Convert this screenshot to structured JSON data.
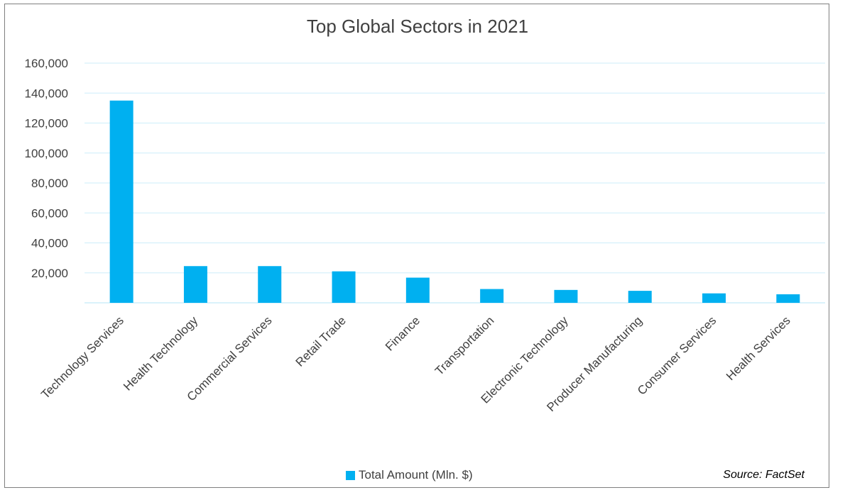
{
  "chart_data": {
    "type": "bar",
    "title": "Top Global Sectors in 2021",
    "categories": [
      "Technology Services",
      "Health Technology",
      "Commercial Services",
      "Retail Trade",
      "Finance",
      "Transportation",
      "Electronic Technology",
      "Producer Manufacturing",
      "Consumer Services",
      "Health Services"
    ],
    "series": [
      {
        "name": "Total Amount (Mln. $)",
        "values": [
          135000,
          24500,
          24500,
          21000,
          16800,
          9200,
          8600,
          8000,
          6300,
          5700
        ]
      }
    ],
    "yticks": [
      "",
      "20,000",
      "40,000",
      "60,000",
      "80,000",
      "100,000",
      "120,000",
      "140,000",
      "160,000"
    ],
    "ylim": [
      0,
      160000
    ],
    "grid": true,
    "legend_position": "bottom",
    "source": "Source: FactSet",
    "colors": {
      "bar": "#00B0F0",
      "grid": "#CDEEFA",
      "axis": "#CDEEFA",
      "text": "#404040"
    }
  }
}
